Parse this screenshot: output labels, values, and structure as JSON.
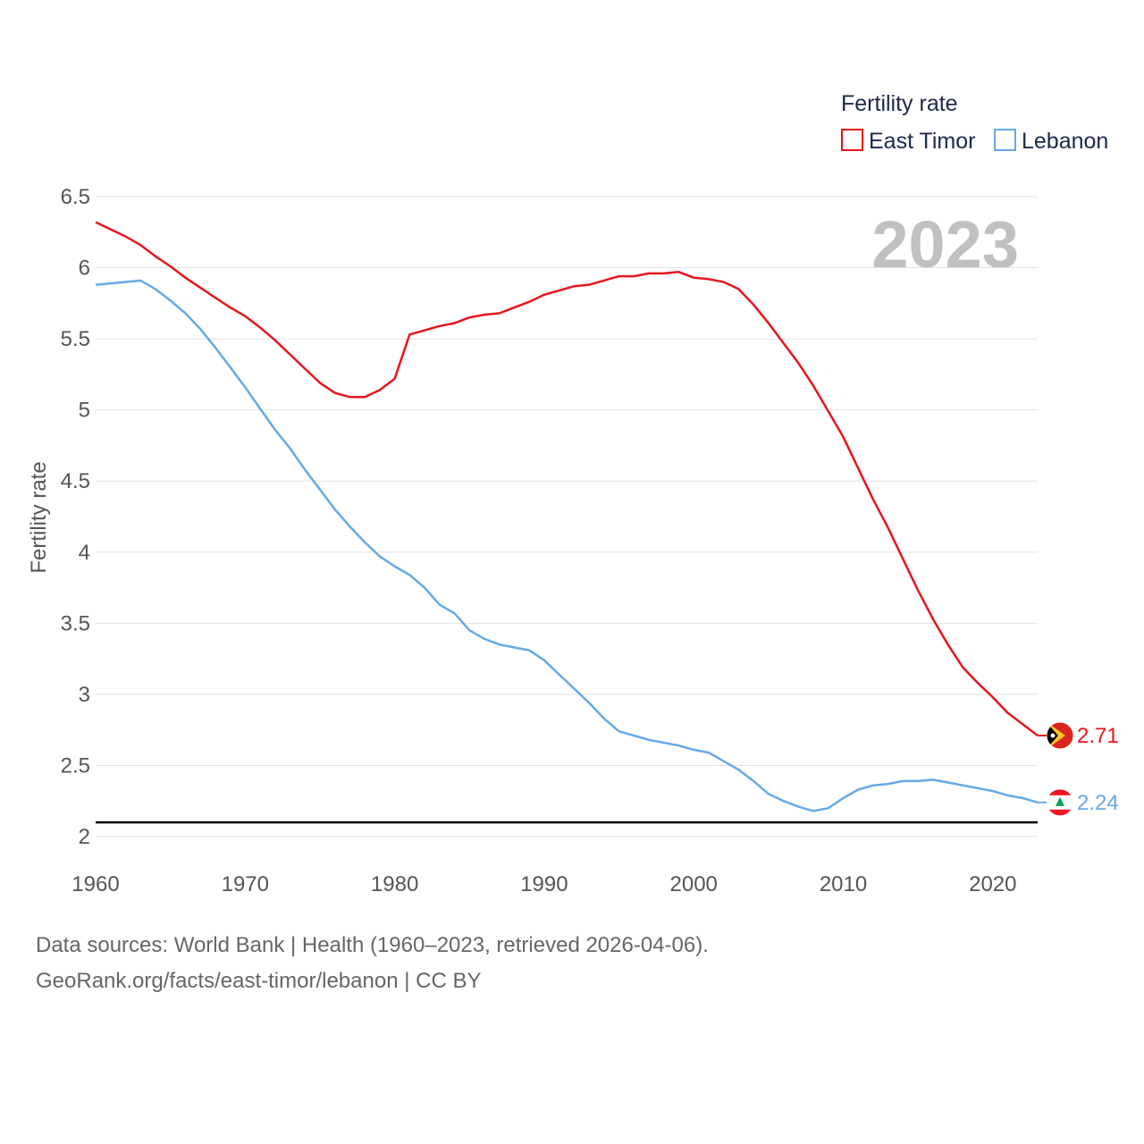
{
  "chart_data": {
    "type": "line",
    "legend_title": "Fertility rate",
    "ylabel": "Fertility rate",
    "year_label": "2023",
    "xlim": [
      1960,
      2023
    ],
    "ylim": [
      2,
      6.5
    ],
    "x_ticks": [
      1960,
      1970,
      1980,
      1990,
      2000,
      2010,
      2020
    ],
    "y_ticks": [
      {
        "value": 2,
        "label": "2"
      },
      {
        "value": 2.5,
        "label": "2.5"
      },
      {
        "value": 3,
        "label": "3"
      },
      {
        "value": 3.5,
        "label": "3.5"
      },
      {
        "value": 4,
        "label": "4"
      },
      {
        "value": 4.5,
        "label": "4.5"
      },
      {
        "value": 5,
        "label": "5"
      },
      {
        "value": 5.5,
        "label": "5.5"
      },
      {
        "value": 6,
        "label": "6"
      },
      {
        "value": 6.5,
        "label": "6.5"
      }
    ],
    "reference_line": 2.1,
    "x": [
      1960,
      1961,
      1962,
      1963,
      1964,
      1965,
      1966,
      1967,
      1968,
      1969,
      1970,
      1971,
      1972,
      1973,
      1974,
      1975,
      1976,
      1977,
      1978,
      1979,
      1980,
      1981,
      1982,
      1983,
      1984,
      1985,
      1986,
      1987,
      1988,
      1989,
      1990,
      1991,
      1992,
      1993,
      1994,
      1995,
      1996,
      1997,
      1998,
      1999,
      2000,
      2001,
      2002,
      2003,
      2004,
      2005,
      2006,
      2007,
      2008,
      2009,
      2010,
      2011,
      2012,
      2013,
      2014,
      2015,
      2016,
      2017,
      2018,
      2019,
      2020,
      2021,
      2022,
      2023
    ],
    "series": [
      {
        "name": "East Timor",
        "color": "#e8141c",
        "end_label": "2.71",
        "flag": "east-timor-flag-icon",
        "values": [
          6.32,
          6.27,
          6.22,
          6.16,
          6.08,
          6.01,
          5.93,
          5.86,
          5.79,
          5.72,
          5.66,
          5.58,
          5.49,
          5.39,
          5.29,
          5.19,
          5.12,
          5.09,
          5.09,
          5.14,
          5.22,
          5.53,
          5.56,
          5.59,
          5.61,
          5.65,
          5.67,
          5.68,
          5.72,
          5.76,
          5.81,
          5.84,
          5.87,
          5.88,
          5.91,
          5.94,
          5.94,
          5.96,
          5.96,
          5.97,
          5.93,
          5.92,
          5.9,
          5.85,
          5.74,
          5.61,
          5.47,
          5.33,
          5.17,
          4.99,
          4.81,
          4.59,
          4.37,
          4.17,
          3.95,
          3.73,
          3.53,
          3.35,
          3.19,
          3.08,
          2.98,
          2.87,
          2.79,
          2.71
        ]
      },
      {
        "name": "Lebanon",
        "color": "#65a9e8",
        "end_label": "2.24",
        "flag": "lebanon-flag-icon",
        "values": [
          5.88,
          5.89,
          5.9,
          5.91,
          5.85,
          5.77,
          5.68,
          5.57,
          5.44,
          5.3,
          5.16,
          5.01,
          4.86,
          4.73,
          4.58,
          4.44,
          4.3,
          4.18,
          4.07,
          3.97,
          3.9,
          3.84,
          3.75,
          3.63,
          3.57,
          3.45,
          3.39,
          3.35,
          3.33,
          3.31,
          3.24,
          3.14,
          3.04,
          2.94,
          2.83,
          2.74,
          2.71,
          2.68,
          2.66,
          2.64,
          2.61,
          2.59,
          2.53,
          2.47,
          2.39,
          2.3,
          2.25,
          2.21,
          2.18,
          2.2,
          2.27,
          2.33,
          2.36,
          2.37,
          2.39,
          2.39,
          2.4,
          2.38,
          2.36,
          2.34,
          2.32,
          2.29,
          2.27,
          2.24
        ]
      }
    ]
  },
  "source": {
    "line1": "Data sources: World Bank | Health (1960–2023, retrieved 2026-04-06).",
    "line2": "GeoRank.org/facts/east-timor/lebanon | CC BY"
  }
}
